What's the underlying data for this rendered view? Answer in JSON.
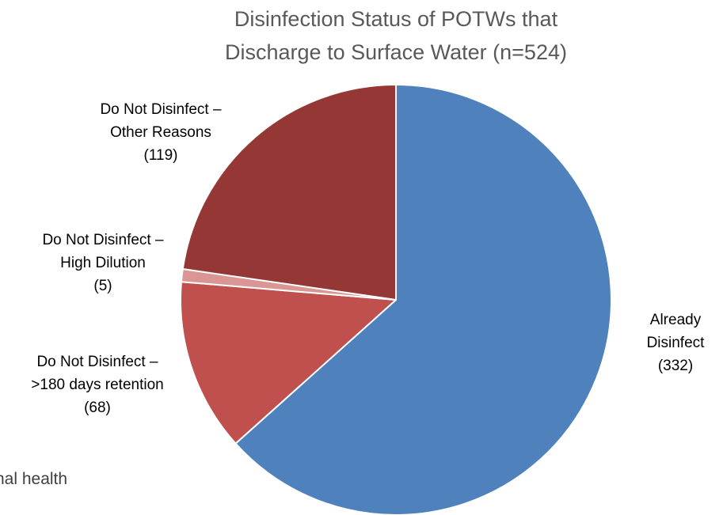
{
  "background_text": "nal health",
  "chart_data": {
    "type": "pie",
    "title_lines": [
      "Disinfection Status of POTWs that",
      "Discharge to Surface Water (n=524)"
    ],
    "slices": [
      {
        "label_lines": [
          "Already",
          "Disinfect",
          "(332)"
        ],
        "value": 332,
        "color": "#4f81bd"
      },
      {
        "label_lines": [
          "Do Not Disinfect –",
          ">180 days retention",
          "(68)"
        ],
        "value": 68,
        "color": "#c0504d"
      },
      {
        "label_lines": [
          "Do Not Disinfect –",
          "High Dilution",
          "(5)"
        ],
        "value": 5,
        "color": "#d99694"
      },
      {
        "label_lines": [
          "Do Not Disinfect –",
          "Other Reasons",
          "(119)"
        ],
        "value": 119,
        "color": "#953735"
      }
    ],
    "start_angle": "12 o'clock",
    "direction": "clockwise",
    "legend": "none"
  }
}
